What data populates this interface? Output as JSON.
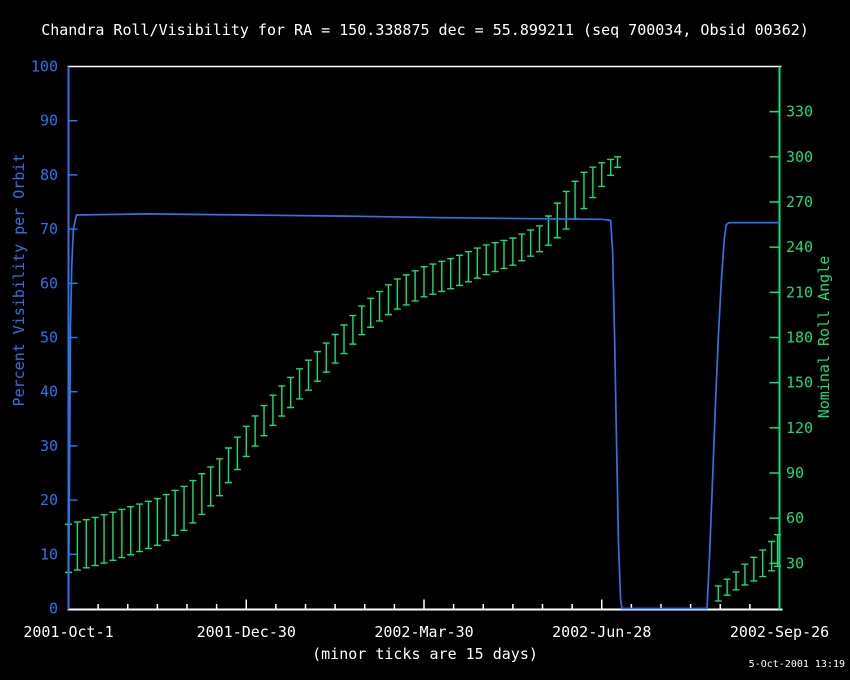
{
  "chart_data": {
    "type": "line",
    "title": "Chandra Roll/Visibility for RA = 150.338875 dec = 55.899211 (seq 700034, Obsid 00362)",
    "timestamp": "5-Oct-2001 13:19",
    "background": "#000000",
    "frame_color": "#ffffff",
    "left_axis": {
      "label": "Percent Visibility per Orbit",
      "color": "#2b74e8",
      "min": 0,
      "max": 100,
      "ticks": [
        0,
        10,
        20,
        30,
        40,
        50,
        60,
        70,
        80,
        90,
        100
      ]
    },
    "right_axis": {
      "label": "Nominal Roll Angle",
      "color": "#14df76",
      "min": 0,
      "max": 360,
      "ticks": [
        30,
        60,
        90,
        120,
        150,
        180,
        210,
        240,
        270,
        300,
        330
      ]
    },
    "x_axis": {
      "start_label": "2001-Oct-1",
      "tick_labels": [
        "2001-Oct-1",
        "2001-Dec-30",
        "2002-Mar-30",
        "2002-Jun-28",
        "2002-Sep-26"
      ],
      "major_tick_days": 90,
      "minor_tick_days": 15,
      "total_days": 360,
      "note": "(minor ticks are 15 days)"
    },
    "series": [
      {
        "name": "percent-visibility-per-orbit",
        "axis": "left",
        "style": "line",
        "color": "#2b74e8",
        "points": [
          [
            0,
            0
          ],
          [
            0.6,
            30
          ],
          [
            1,
            52
          ],
          [
            1.6,
            63
          ],
          [
            2.5,
            70
          ],
          [
            4,
            72.6
          ],
          [
            40,
            72.8
          ],
          [
            90,
            72.6
          ],
          [
            140,
            72.4
          ],
          [
            190,
            72.1
          ],
          [
            240,
            71.9
          ],
          [
            270,
            71.8
          ],
          [
            274.5,
            71.6
          ],
          [
            275.5,
            66
          ],
          [
            276.5,
            50
          ],
          [
            277.5,
            30
          ],
          [
            278.5,
            12
          ],
          [
            279.5,
            2
          ],
          [
            280.2,
            0
          ],
          [
            323.3,
            0
          ],
          [
            324.5,
            9
          ],
          [
            326,
            23
          ],
          [
            327.5,
            37
          ],
          [
            329,
            50
          ],
          [
            330.5,
            60
          ],
          [
            332,
            68
          ],
          [
            333,
            70.8
          ],
          [
            334.5,
            71.2
          ],
          [
            360,
            71.2
          ]
        ]
      },
      {
        "name": "nominal-roll-angle-band",
        "axis": "right",
        "style": "error-bars",
        "color": "#14df76",
        "bar_spacing_days": 4.5,
        "segments": [
          {
            "control_points": [
              [
                0,
                24,
                56
              ],
              [
                15,
                29,
                61
              ],
              [
                30,
                35,
                67
              ],
              [
                45,
                42,
                73
              ],
              [
                60,
                53,
                82
              ],
              [
                75,
                72,
                97
              ],
              [
                90,
                101,
                121
              ],
              [
                105,
                124,
                144
              ],
              [
                120,
                143,
                163
              ],
              [
                135,
                163,
                182
              ],
              [
                150,
                184,
                203
              ],
              [
                165,
                198,
                218
              ],
              [
                180,
                207,
                227
              ],
              [
                195,
                213,
                233
              ],
              [
                210,
                221,
                241
              ],
              [
                225,
                228,
                246
              ],
              [
                240,
                238,
                255
              ],
              [
                250,
                249,
                274
              ],
              [
                260,
                264,
                289
              ],
              [
                268,
                277,
                295
              ],
              [
                274,
                287,
                298
              ],
              [
                278,
                293,
                300
              ]
            ]
          },
          {
            "control_points": [
              [
                329,
                5,
                15
              ],
              [
                336,
                11,
                22
              ],
              [
                343,
                16,
                30
              ],
              [
                350,
                20,
                37
              ],
              [
                355,
                24,
                43
              ],
              [
                359,
                28,
                49
              ]
            ]
          }
        ]
      }
    ]
  }
}
